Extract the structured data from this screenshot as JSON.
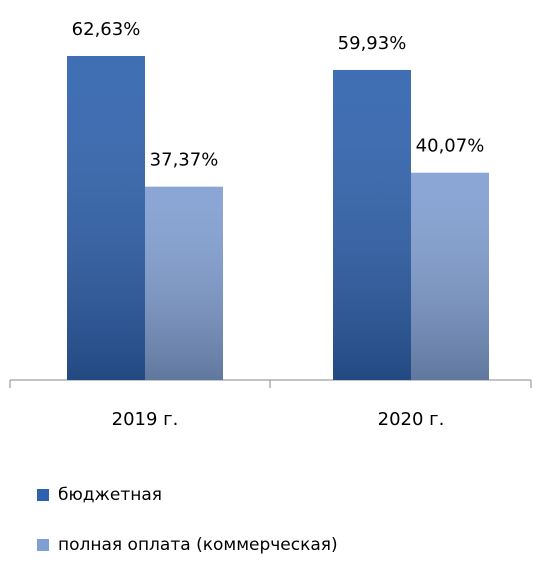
{
  "chart_data": {
    "type": "bar",
    "categories": [
      "2019 г.",
      "2020 г."
    ],
    "series": [
      {
        "name": "бюджетная",
        "color": "#2f62ae",
        "values": [
          62.63,
          59.93
        ],
        "value_labels": [
          "62,63%",
          "59,93%"
        ]
      },
      {
        "name": "полная оплата (коммерческая)",
        "color": "#819fd2",
        "values": [
          37.37,
          40.07
        ],
        "value_labels": [
          "37,37%",
          "40,07%"
        ]
      }
    ],
    "legend": "bottom"
  }
}
